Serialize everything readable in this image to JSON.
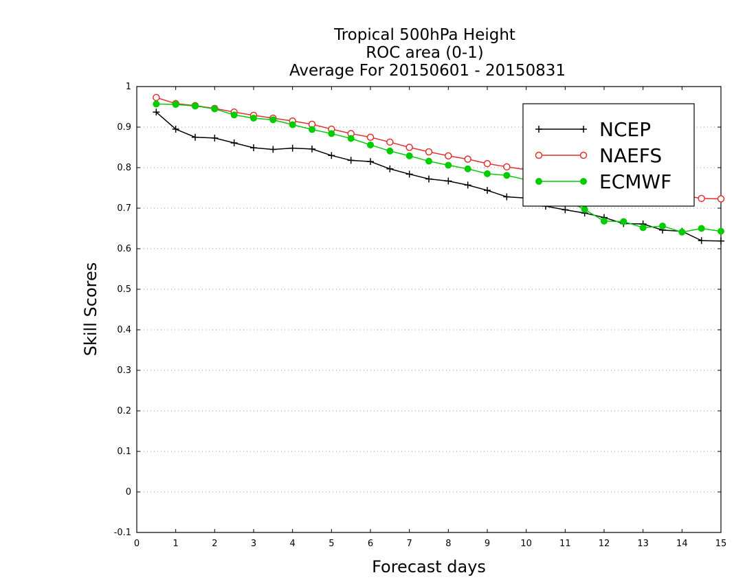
{
  "chart_data": {
    "type": "line",
    "title": [
      "Tropical 500hPa Height",
      "ROC area (0-1)",
      "Average For 20150601 - 20150831"
    ],
    "xlabel": "Forecast days",
    "ylabel": "Skill Scores",
    "xlim": [
      0,
      15
    ],
    "ylim": [
      -0.1,
      1
    ],
    "xticks": [
      "0",
      "1",
      "2",
      "3",
      "4",
      "5",
      "6",
      "7",
      "8",
      "9",
      "10",
      "11",
      "12",
      "13",
      "14",
      "15"
    ],
    "yticks": [
      "-0.1",
      "0",
      "0.1",
      "0.2",
      "0.3",
      "0.4",
      "0.5",
      "0.6",
      "0.7",
      "0.8",
      "0.9",
      "1"
    ],
    "grid": "dotted horizontal",
    "legend_position": "top-right",
    "x": [
      0.5,
      1,
      1.5,
      2,
      2.5,
      3,
      3.5,
      4,
      4.5,
      5,
      5.5,
      6,
      6.5,
      7,
      7.5,
      8,
      8.5,
      9,
      9.5,
      10,
      10.5,
      11,
      11.5,
      12,
      12.5,
      13,
      13.5,
      14,
      14.5,
      15
    ],
    "series": [
      {
        "name": "NCEP",
        "color": "#000000",
        "marker": "plus",
        "values": [
          0.937,
          0.895,
          0.875,
          0.873,
          0.861,
          0.849,
          0.845,
          0.848,
          0.846,
          0.83,
          0.818,
          0.815,
          0.797,
          0.784,
          0.772,
          0.767,
          0.757,
          0.744,
          0.728,
          0.725,
          0.705,
          0.696,
          0.688,
          0.677,
          0.662,
          0.661,
          0.646,
          0.643,
          0.62,
          0.619
        ]
      },
      {
        "name": "NAEFS",
        "color": "#e03030",
        "marker": "open-circle",
        "values": [
          0.973,
          0.958,
          0.953,
          0.946,
          0.937,
          0.929,
          0.922,
          0.915,
          0.907,
          0.895,
          0.884,
          0.875,
          0.863,
          0.85,
          0.839,
          0.829,
          0.821,
          0.81,
          0.802,
          0.795,
          0.787,
          0.779,
          0.77,
          0.762,
          0.752,
          0.745,
          0.738,
          0.732,
          0.724,
          0.723
        ]
      },
      {
        "name": "ECMWF",
        "color": "#00cc00",
        "marker": "filled-circle",
        "values": [
          0.957,
          0.956,
          0.952,
          0.945,
          0.93,
          0.922,
          0.918,
          0.906,
          0.894,
          0.884,
          0.872,
          0.856,
          0.841,
          0.829,
          0.816,
          0.806,
          0.797,
          0.785,
          0.781,
          0.77,
          0.755,
          0.72,
          0.697,
          0.668,
          0.667,
          0.652,
          0.656,
          0.641,
          0.65,
          0.643
        ]
      }
    ]
  }
}
